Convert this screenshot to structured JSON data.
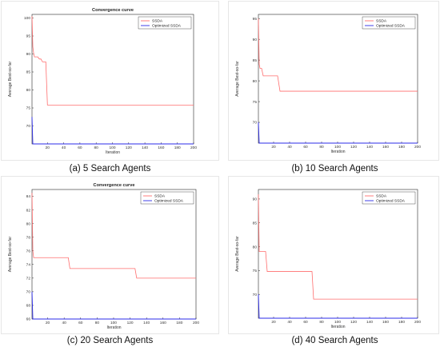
{
  "colors": {
    "ssda": "#ff6e6e",
    "optimized": "#2b2be8"
  },
  "chart_data": [
    {
      "type": "line",
      "caption": "(a) 5 Search Agents",
      "title": "Convergence curve",
      "xlabel": "Iteration",
      "ylabel": "Average Best-so-far",
      "xlim": [
        1,
        200
      ],
      "ylim": [
        65,
        101
      ],
      "xticks": [
        20,
        40,
        60,
        80,
        100,
        120,
        140,
        160,
        180,
        200
      ],
      "yticks": [
        70,
        75,
        80,
        85,
        90,
        95,
        100
      ],
      "grid": false,
      "legend_position": "top-right",
      "series": [
        {
          "name": "SSDA",
          "color": "#ff6e6e",
          "x": [
            1,
            2,
            3,
            4,
            8,
            10,
            12,
            14,
            16,
            18,
            20,
            200
          ],
          "y": [
            100.5,
            92,
            90.2,
            89.2,
            89.2,
            88.6,
            88.6,
            87.8,
            87.8,
            87.8,
            75.8,
            75.8
          ]
        },
        {
          "name": "Optimized SSDA",
          "color": "#2b2be8",
          "x": [
            1,
            2,
            200
          ],
          "y": [
            72.5,
            65,
            65
          ]
        }
      ]
    },
    {
      "type": "line",
      "caption": "(b) 10 Search Agents",
      "title": "",
      "xlabel": "Iteration",
      "ylabel": "Average Best-so-far",
      "xlim": [
        1,
        200
      ],
      "ylim": [
        65,
        96
      ],
      "xticks": [
        20,
        40,
        60,
        80,
        100,
        120,
        140,
        160,
        180,
        200
      ],
      "yticks": [
        70,
        75,
        80,
        85,
        90,
        95
      ],
      "grid": false,
      "legend_position": "top-right",
      "series": [
        {
          "name": "SSDA",
          "color": "#ff6e6e",
          "x": [
            1,
            2,
            3,
            5,
            7,
            25,
            28,
            200
          ],
          "y": [
            95,
            84,
            83,
            83,
            81.2,
            81.2,
            77.5,
            77.5
          ]
        },
        {
          "name": "Optimized SSDA",
          "color": "#2b2be8",
          "x": [
            1,
            2,
            200
          ],
          "y": [
            70,
            65,
            65
          ]
        }
      ]
    },
    {
      "type": "line",
      "caption": "(c) 20 Search Agents",
      "title": "Convergence curve",
      "xlabel": "Iteration",
      "ylabel": "Average Best-so-far",
      "xlim": [
        1,
        200
      ],
      "ylim": [
        66,
        85
      ],
      "xticks": [
        20,
        40,
        60,
        80,
        100,
        120,
        140,
        160,
        180,
        200
      ],
      "yticks": [
        66,
        68,
        70,
        72,
        74,
        76,
        78,
        80,
        82,
        84
      ],
      "grid": false,
      "legend_position": "top-right",
      "series": [
        {
          "name": "SSDA",
          "color": "#ff6e6e",
          "x": [
            1,
            2,
            3,
            45,
            47,
            126,
            128,
            200
          ],
          "y": [
            84.5,
            76,
            75,
            75,
            73.4,
            73.4,
            72,
            72
          ]
        },
        {
          "name": "Optimized SSDA",
          "color": "#2b2be8",
          "x": [
            1,
            2,
            200
          ],
          "y": [
            70,
            66,
            66
          ]
        }
      ]
    },
    {
      "type": "line",
      "caption": "(d) 40 Search Agents",
      "title": "",
      "xlabel": "Iteration",
      "ylabel": "Average Best-so-far",
      "xlim": [
        1,
        200
      ],
      "ylim": [
        65,
        92
      ],
      "xticks": [
        20,
        40,
        60,
        80,
        100,
        120,
        140,
        160,
        180,
        200
      ],
      "yticks": [
        70,
        75,
        80,
        85,
        90
      ],
      "grid": false,
      "legend_position": "top-right",
      "series": [
        {
          "name": "SSDA",
          "color": "#ff6e6e",
          "x": [
            1,
            2,
            10,
            12,
            68,
            70,
            200
          ],
          "y": [
            91,
            79,
            79,
            74.8,
            74.8,
            69,
            69
          ]
        },
        {
          "name": "Optimized SSDA",
          "color": "#2b2be8",
          "x": [
            1,
            2,
            200
          ],
          "y": [
            70,
            65,
            65
          ]
        }
      ]
    }
  ]
}
